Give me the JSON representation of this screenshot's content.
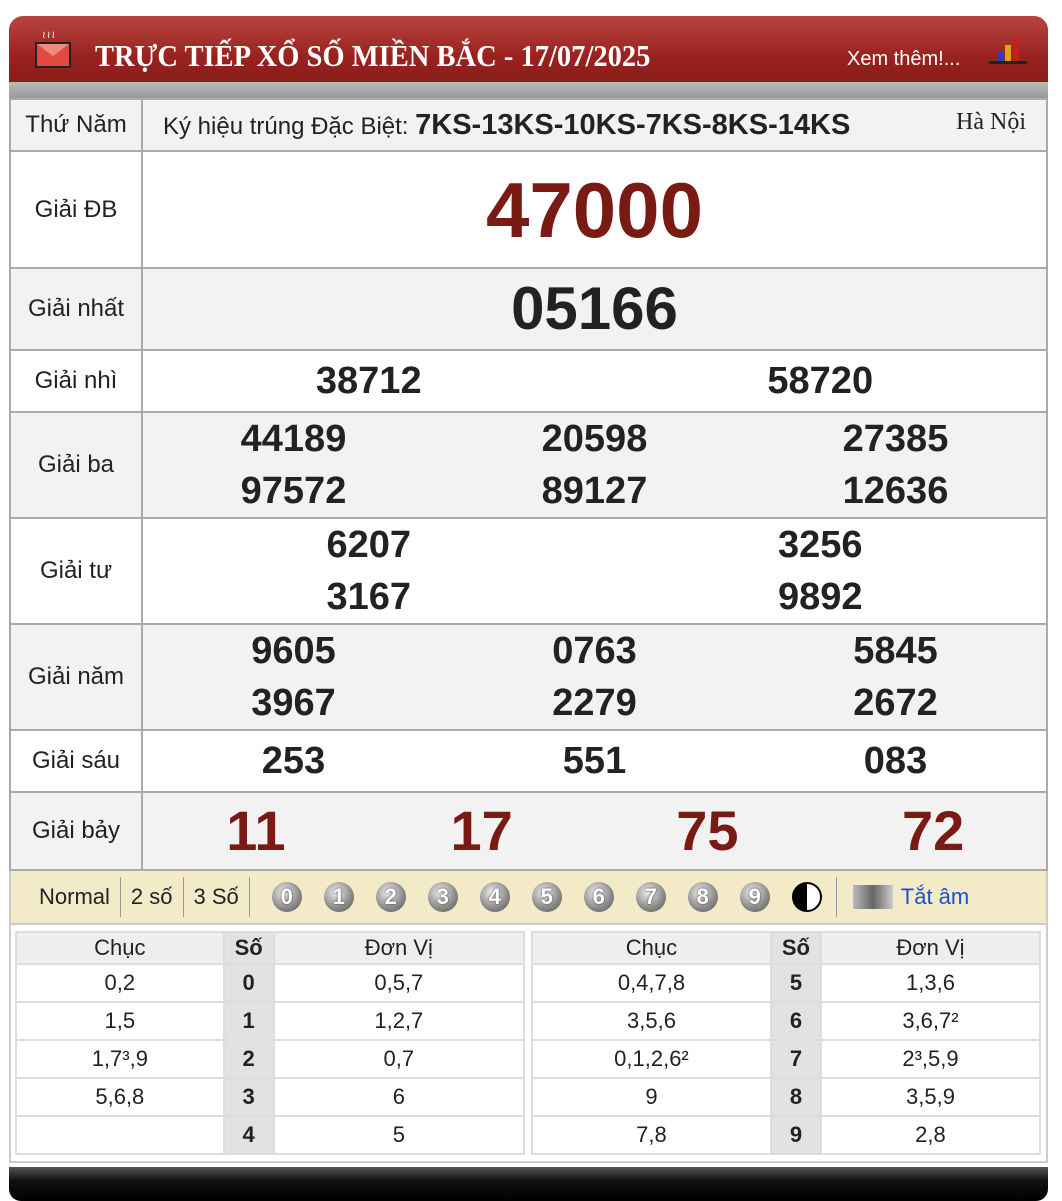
{
  "header": {
    "title": "TRỰC TIẾP XỔ SỐ MIỀN BẮC - 17/07/2025",
    "more_label": "Xem thêm!...",
    "mail_icon": "mail-icon",
    "chart_icon": "bar-chart-icon"
  },
  "info": {
    "day": "Thứ Năm",
    "symbol_label": "Ký hiệu trúng Đặc Biệt:",
    "symbol_value": "7KS-13KS-10KS-7KS-8KS-14KS",
    "region": "Hà Nội"
  },
  "prizes": [
    {
      "label": "Giải ĐB",
      "numbers": [
        "47000"
      ],
      "color": "#7a1a14",
      "size": "special"
    },
    {
      "label": "Giải nhất",
      "numbers": [
        "05166"
      ],
      "size": "first"
    },
    {
      "label": "Giải nhì",
      "numbers": [
        "38712",
        "58720"
      ],
      "cols": 2
    },
    {
      "label": "Giải ba",
      "numbers": [
        "44189",
        "20598",
        "27385",
        "97572",
        "89127",
        "12636"
      ],
      "cols": 3
    },
    {
      "label": "Giải tư",
      "numbers": [
        "6207",
        "3256",
        "3167",
        "9892"
      ],
      "cols": 2
    },
    {
      "label": "Giải năm",
      "numbers": [
        "9605",
        "0763",
        "5845",
        "3967",
        "2279",
        "2672"
      ],
      "cols": 3
    },
    {
      "label": "Giải sáu",
      "numbers": [
        "253",
        "551",
        "083"
      ],
      "cols": 3
    },
    {
      "label": "Giải bảy",
      "numbers": [
        "11",
        "17",
        "75",
        "72"
      ],
      "cols": 4,
      "color": "#7a1a14"
    }
  ],
  "toolbar": {
    "modes": [
      "Normal",
      "2 số",
      "3 Số"
    ],
    "digits": [
      "0",
      "1",
      "2",
      "3",
      "4",
      "5",
      "6",
      "7",
      "8",
      "9"
    ],
    "mute_label": "Tắt âm",
    "yin_yang_icon": "yin-yang-icon",
    "speaker_icon": "speaker-icon"
  },
  "loto": {
    "headers": [
      "Chục",
      "Số",
      "Đơn Vị"
    ],
    "left": [
      [
        "0,2",
        "0",
        "0,5,7"
      ],
      [
        "1,5",
        "1",
        "1,2,7"
      ],
      [
        "1,7³,9",
        "2",
        "0,7"
      ],
      [
        "5,6,8",
        "3",
        "6"
      ],
      [
        "",
        "4",
        "5"
      ]
    ],
    "right": [
      [
        "0,4,7,8",
        "5",
        "1,3,6"
      ],
      [
        "3,5,6",
        "6",
        "3,6,7²"
      ],
      [
        "0,1,2,6²",
        "7",
        "2³,5,9"
      ],
      [
        "9",
        "8",
        "3,5,9"
      ],
      [
        "7,8",
        "9",
        "2,8"
      ]
    ]
  }
}
